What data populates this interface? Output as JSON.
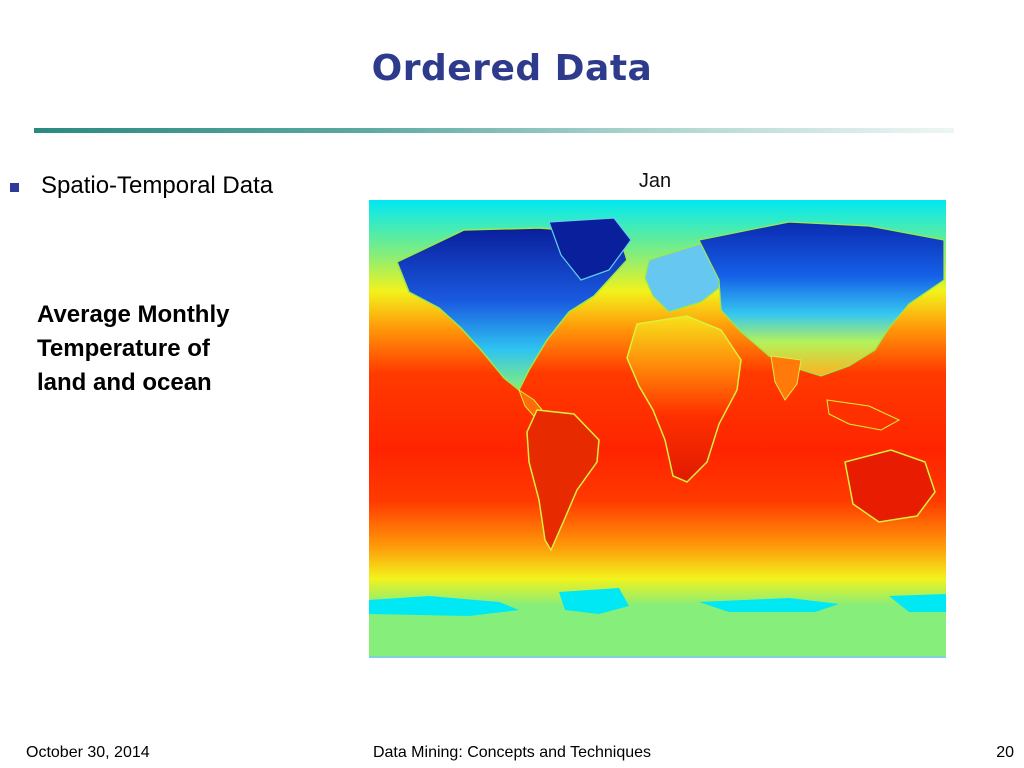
{
  "slide": {
    "title": "Ordered Data",
    "bullet": "Spatio-Temporal Data",
    "description": [
      "Average Monthly",
      "Temperature of",
      "land and ocean"
    ],
    "map_label": "Jan"
  },
  "footer": {
    "date": "October 30, 2014",
    "course": "Data Mining: Concepts and Techniques",
    "page": "20"
  },
  "colors": {
    "title": "#2e3a8c",
    "bullet": "#2e3a9c",
    "cold": "#0a1f9c",
    "cyan": "#00e8f4",
    "green": "#86ee7a",
    "yellow": "#f2f21c",
    "orange": "#ff9a0a",
    "red": "#ff2a00",
    "dark_red": "#d71200"
  }
}
